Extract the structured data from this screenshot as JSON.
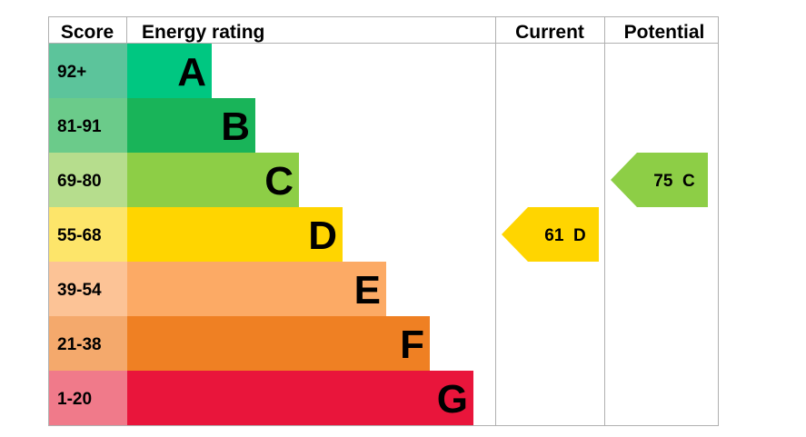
{
  "headers": {
    "score": "Score",
    "energy_rating": "Energy rating",
    "current": "Current",
    "potential": "Potential"
  },
  "chart_data": {
    "type": "bar",
    "title": "",
    "categories": [
      "A",
      "B",
      "C",
      "D",
      "E",
      "F",
      "G"
    ],
    "bands": [
      {
        "letter": "A",
        "range": "92+",
        "score_color": "#5cc49b",
        "bar_color": "#00c781"
      },
      {
        "letter": "B",
        "range": "81-91",
        "score_color": "#6bcb8a",
        "bar_color": "#19b459"
      },
      {
        "letter": "C",
        "range": "69-80",
        "score_color": "#b6dd8d",
        "bar_color": "#8dce46"
      },
      {
        "letter": "D",
        "range": "55-68",
        "score_color": "#fde56a",
        "bar_color": "#ffd500"
      },
      {
        "letter": "E",
        "range": "39-54",
        "score_color": "#fcc396",
        "bar_color": "#fcaa65"
      },
      {
        "letter": "F",
        "range": "21-38",
        "score_color": "#f4a96c",
        "bar_color": "#ef8023"
      },
      {
        "letter": "G",
        "range": "1-20",
        "score_color": "#f07a8a",
        "bar_color": "#e9153b"
      }
    ],
    "current": {
      "value": 61,
      "letter": "D",
      "label": "61  D",
      "color": "#ffd500"
    },
    "potential": {
      "value": 75,
      "letter": "C",
      "label": "75  C",
      "color": "#8dce46"
    }
  }
}
